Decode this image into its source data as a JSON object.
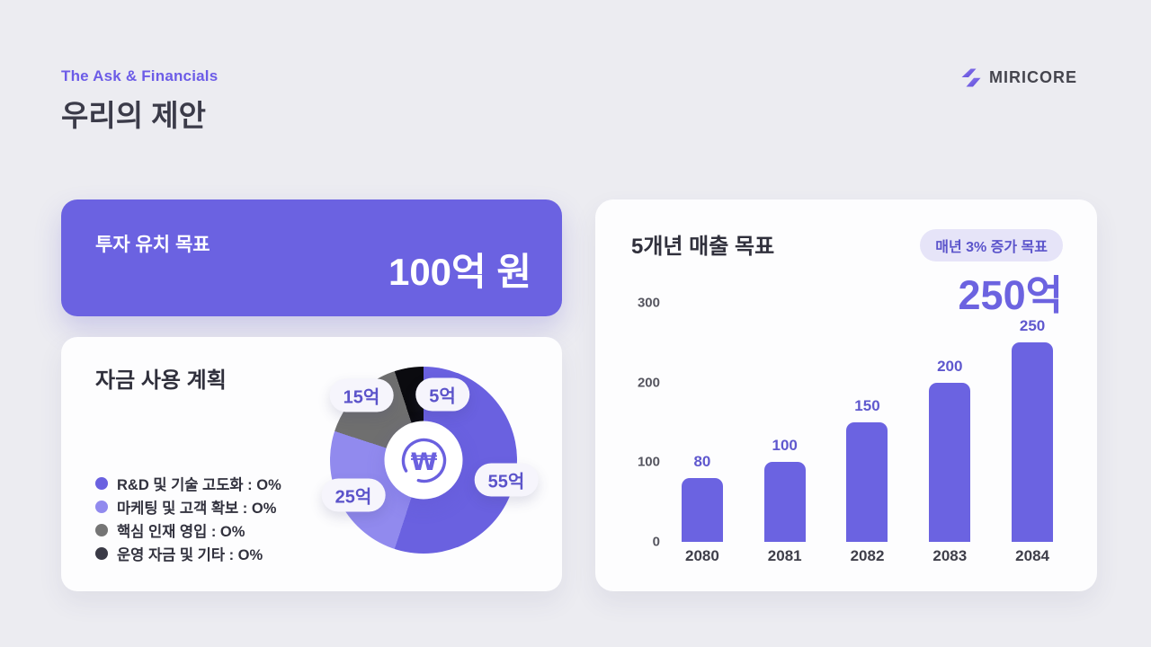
{
  "page": {
    "background": "#ECECF1",
    "accent": "#6C63E0"
  },
  "header": {
    "eyebrow": "The Ask & Financials",
    "title": "우리의 제안",
    "logo_text": "MIRICORE"
  },
  "investment_card": {
    "label": "투자 유치 목표",
    "amount": "100억 원",
    "background": "#6B62E1"
  },
  "funding_card": {
    "title": "자금 사용 계획"
  },
  "revenue_card": {
    "title": "5개년 매출 목표",
    "badge": "매년 3% 증가 목표",
    "highlight": "250억"
  },
  "chart_data": [
    {
      "type": "pie",
      "title": "자금 사용 계획",
      "donut": true,
      "start_angle_deg": 0,
      "direction": "clockwise",
      "center_icon": "won-currency",
      "slices": [
        {
          "legend_label": "R&D 및 기술 고도화 : O%",
          "value_label": "55억",
          "value": 55,
          "color": "#6A61E0",
          "legend_color": "#6A61E0"
        },
        {
          "legend_label": "마케팅 및 고객 확보 : O%",
          "value_label": "25억",
          "value": 25,
          "color": "#918AEE",
          "legend_color": "#918AEE"
        },
        {
          "legend_label": "핵심 인재 영입 : O%",
          "value_label": "15억",
          "value": 15,
          "color": "#6F6F6F",
          "legend_color": "#757575"
        },
        {
          "legend_label": "운영 자금 및 기타 : O%",
          "value_label": "5억",
          "value": 5,
          "color": "#0B0B0F",
          "legend_color": "#3A3A46"
        }
      ]
    },
    {
      "type": "bar",
      "title": "5개년 매출 목표",
      "categories": [
        "2080",
        "2081",
        "2082",
        "2083",
        "2084"
      ],
      "values": [
        80,
        100,
        150,
        200,
        250
      ],
      "ylim": [
        0,
        300
      ],
      "yticks": [
        300,
        200,
        100,
        0
      ],
      "bar_color": "#6B63E1",
      "grid": false,
      "xlabel": "",
      "ylabel": ""
    }
  ]
}
